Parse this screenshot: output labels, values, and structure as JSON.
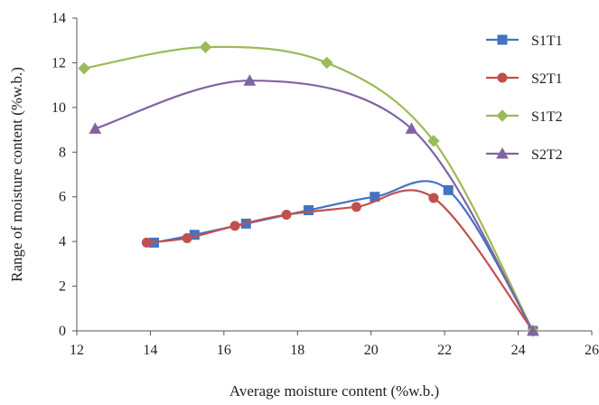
{
  "chart_data": {
    "type": "line",
    "xlabel": "Average moisture content (%w.b.)",
    "ylabel": "Range of moisture content  (%w.b.)",
    "xlim": [
      12,
      26
    ],
    "ylim": [
      0,
      14
    ],
    "x_ticks": [
      "12",
      "14",
      "16",
      "18",
      "20",
      "22",
      "24",
      "26"
    ],
    "y_ticks": [
      "0",
      "2",
      "4",
      "6",
      "8",
      "10",
      "12",
      "14"
    ],
    "grid": false,
    "legend_position": "right",
    "smooth": true,
    "series": [
      {
        "name": "S1T1",
        "color": "#4472C4",
        "marker": "square",
        "points": [
          [
            14.1,
            3.95
          ],
          [
            15.2,
            4.3
          ],
          [
            16.6,
            4.8
          ],
          [
            18.3,
            5.4
          ],
          [
            20.1,
            6.0
          ],
          [
            22.1,
            6.3
          ],
          [
            24.4,
            0.0
          ]
        ]
      },
      {
        "name": "S2T1",
        "color": "#C0504D",
        "marker": "circle",
        "points": [
          [
            13.9,
            3.95
          ],
          [
            15.0,
            4.15
          ],
          [
            16.3,
            4.7
          ],
          [
            17.7,
            5.2
          ],
          [
            19.6,
            5.55
          ],
          [
            21.7,
            5.95
          ],
          [
            24.4,
            0.0
          ]
        ]
      },
      {
        "name": "S1T2",
        "color": "#9BBB59",
        "marker": "diamond",
        "points": [
          [
            12.2,
            11.75
          ],
          [
            15.5,
            12.7
          ],
          [
            18.8,
            12.0
          ],
          [
            21.7,
            8.5
          ],
          [
            24.4,
            0.0
          ]
        ]
      },
      {
        "name": "S2T2",
        "color": "#8064A2",
        "marker": "triangle",
        "points": [
          [
            12.5,
            9.05
          ],
          [
            16.7,
            11.2
          ],
          [
            21.1,
            9.05
          ],
          [
            24.4,
            0.0
          ]
        ]
      }
    ]
  }
}
